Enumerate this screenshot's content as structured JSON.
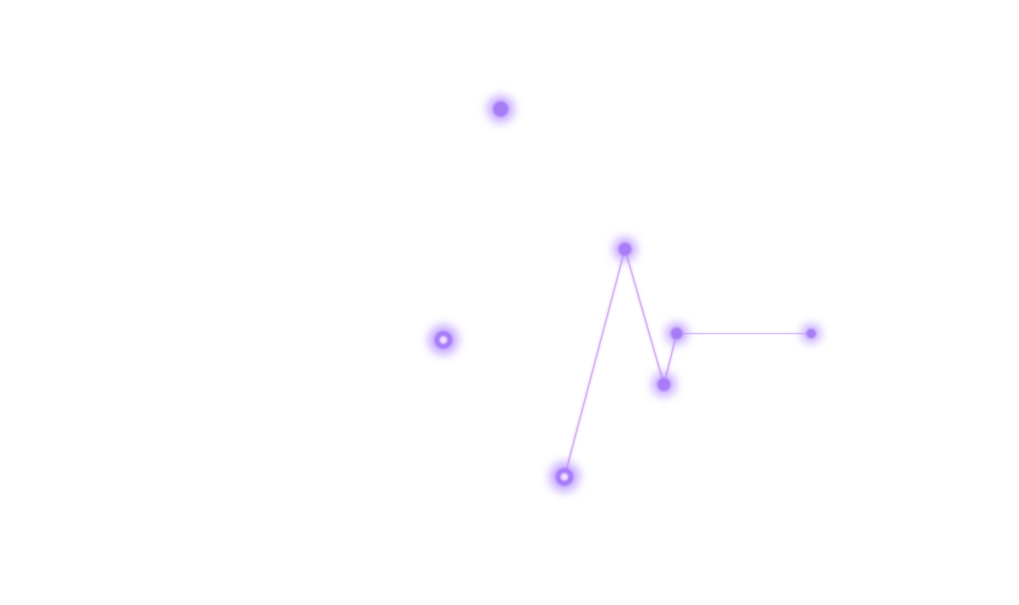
{
  "canvas": {
    "background": "#ffffff"
  },
  "colors": {
    "node": "#a77cf7",
    "node_core_highlight": "#fde6ff",
    "glow": "#b38cff",
    "edge": "#cf9ff0"
  },
  "nodes": [
    {
      "id": "star-a",
      "kind": "isolated",
      "highlighted": false
    },
    {
      "id": "star-b",
      "kind": "isolated",
      "highlighted": true
    },
    {
      "id": "star-c",
      "kind": "connected",
      "highlighted": false
    },
    {
      "id": "star-d",
      "kind": "connected",
      "highlighted": false
    },
    {
      "id": "star-e",
      "kind": "connected",
      "highlighted": false
    },
    {
      "id": "star-f",
      "kind": "connected",
      "highlighted": false
    },
    {
      "id": "star-g",
      "kind": "connected",
      "highlighted": true
    }
  ],
  "edges": [
    {
      "from": "star-g",
      "to": "star-c"
    },
    {
      "from": "star-c",
      "to": "star-e"
    },
    {
      "from": "star-e",
      "to": "star-d"
    },
    {
      "from": "star-d",
      "to": "star-f"
    }
  ]
}
